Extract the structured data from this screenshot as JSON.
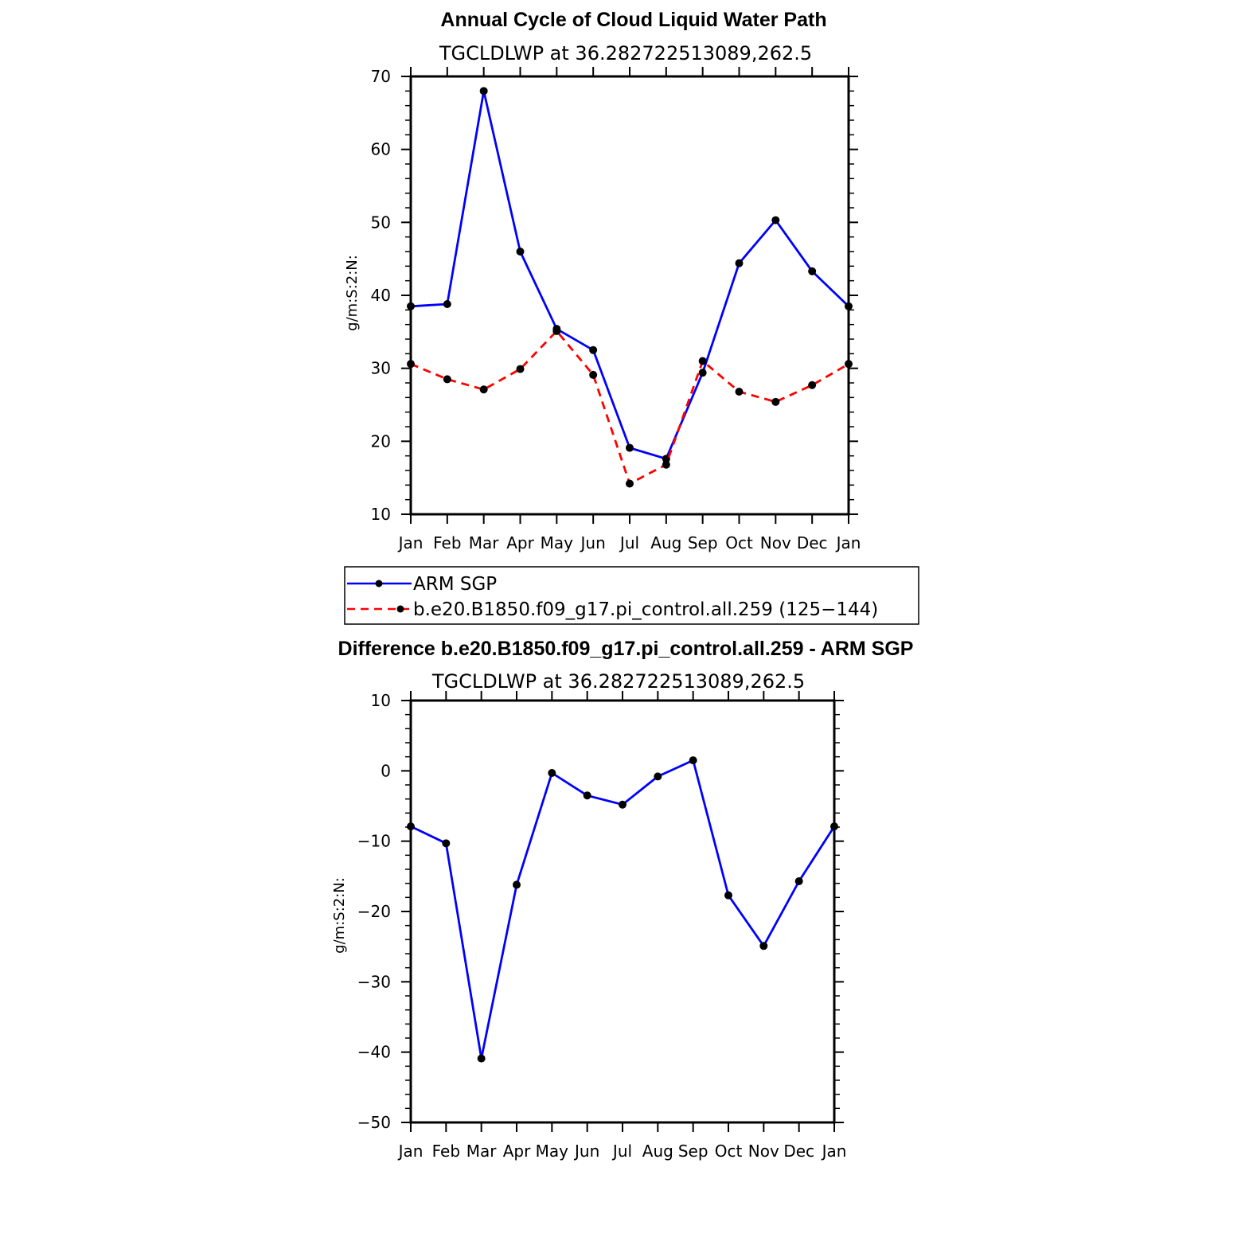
{
  "chart_data": [
    {
      "type": "line",
      "title": "Annual Cycle of Cloud Liquid Water Path",
      "subtitle": "TGCLDLWP  at  36.282722513089,262.5",
      "xlabel": "",
      "ylabel": "g/m:S:2:N:",
      "categories": [
        "Jan",
        "Feb",
        "Mar",
        "Apr",
        "May",
        "Jun",
        "Jul",
        "Aug",
        "Sep",
        "Oct",
        "Nov",
        "Dec",
        "Jan"
      ],
      "ylim": [
        10,
        70
      ],
      "yticks": [
        "10",
        "20",
        "30",
        "40",
        "50",
        "60",
        "70"
      ],
      "series": [
        {
          "name": "ARM SGP",
          "color": "#0000ff",
          "dash": "solid",
          "values": [
            38.5,
            38.8,
            68.0,
            46.0,
            35.4,
            32.5,
            19.1,
            17.6,
            29.4,
            44.4,
            50.3,
            43.3,
            38.5
          ]
        },
        {
          "name": "b.e20.B1850.f09_g17.pi_control.all.259 (125−144)",
          "color": "#ff0000",
          "dash": "dashed",
          "values": [
            30.6,
            28.5,
            27.1,
            29.9,
            35.1,
            29.1,
            14.2,
            16.8,
            31.0,
            26.8,
            25.4,
            27.7,
            30.6
          ]
        }
      ],
      "legend": "below"
    },
    {
      "type": "line",
      "title": "Difference b.e20.B1850.f09_g17.pi_control.all.259 - ARM SGP",
      "subtitle": "TGCLDLWP  at  36.282722513089,262.5",
      "xlabel": "",
      "ylabel": "g/m:S:2:N:",
      "categories": [
        "Jan",
        "Feb",
        "Mar",
        "Apr",
        "May",
        "Jun",
        "Jul",
        "Aug",
        "Sep",
        "Oct",
        "Nov",
        "Dec",
        "Jan"
      ],
      "ylim": [
        -50,
        10
      ],
      "yticks": [
        "−50",
        "−40",
        "−30",
        "−20",
        "−10",
        "0",
        "10"
      ],
      "series": [
        {
          "name": "Difference",
          "color": "#0000ff",
          "dash": "solid",
          "values": [
            -7.9,
            -10.3,
            -40.9,
            -16.2,
            -0.3,
            -3.5,
            -4.8,
            -0.8,
            1.5,
            -17.7,
            -24.9,
            -15.7,
            -7.9
          ]
        }
      ]
    }
  ]
}
